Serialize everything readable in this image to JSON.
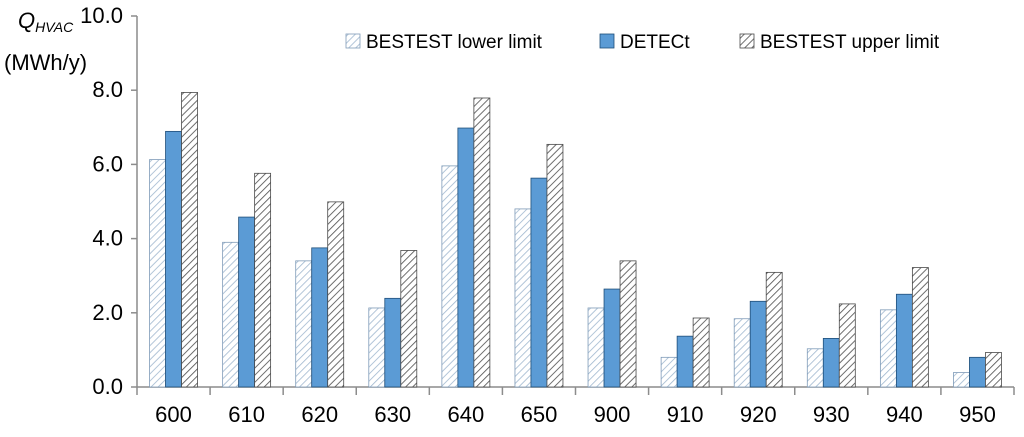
{
  "chart_data": {
    "type": "bar",
    "ylabel_symbol": "Q",
    "ylabel_subscript": "HVAC",
    "ylabel_unit": "(MWh/y)",
    "ylim": [
      0,
      10
    ],
    "yticks": [
      "0.0",
      "2.0",
      "4.0",
      "6.0",
      "8.0",
      "10.0"
    ],
    "grid": false,
    "legend_position": "top-right",
    "categories": [
      "600",
      "610",
      "620",
      "630",
      "640",
      "650",
      "900",
      "910",
      "920",
      "930",
      "940",
      "950"
    ],
    "series": [
      {
        "name": "BESTEST lower limit",
        "pattern": "light-hatch",
        "values": [
          6.13,
          3.9,
          3.4,
          2.13,
          5.96,
          4.8,
          2.13,
          0.8,
          1.84,
          1.03,
          2.08,
          0.39
        ]
      },
      {
        "name": "DETECt",
        "pattern": "solid",
        "values": [
          6.89,
          4.58,
          3.75,
          2.39,
          6.98,
          5.63,
          2.64,
          1.37,
          2.31,
          1.31,
          2.5,
          0.8
        ]
      },
      {
        "name": "BESTEST upper limit",
        "pattern": "dark-hatch",
        "values": [
          7.94,
          5.76,
          4.99,
          3.68,
          7.79,
          6.54,
          3.4,
          1.86,
          3.09,
          2.24,
          3.22,
          0.93
        ]
      }
    ],
    "colors": {
      "solid": "#5b9bd5",
      "solid_edge": "#1f4e79",
      "hatch_edge": "#4a4a4a",
      "axis": "#8c8c8c"
    }
  }
}
